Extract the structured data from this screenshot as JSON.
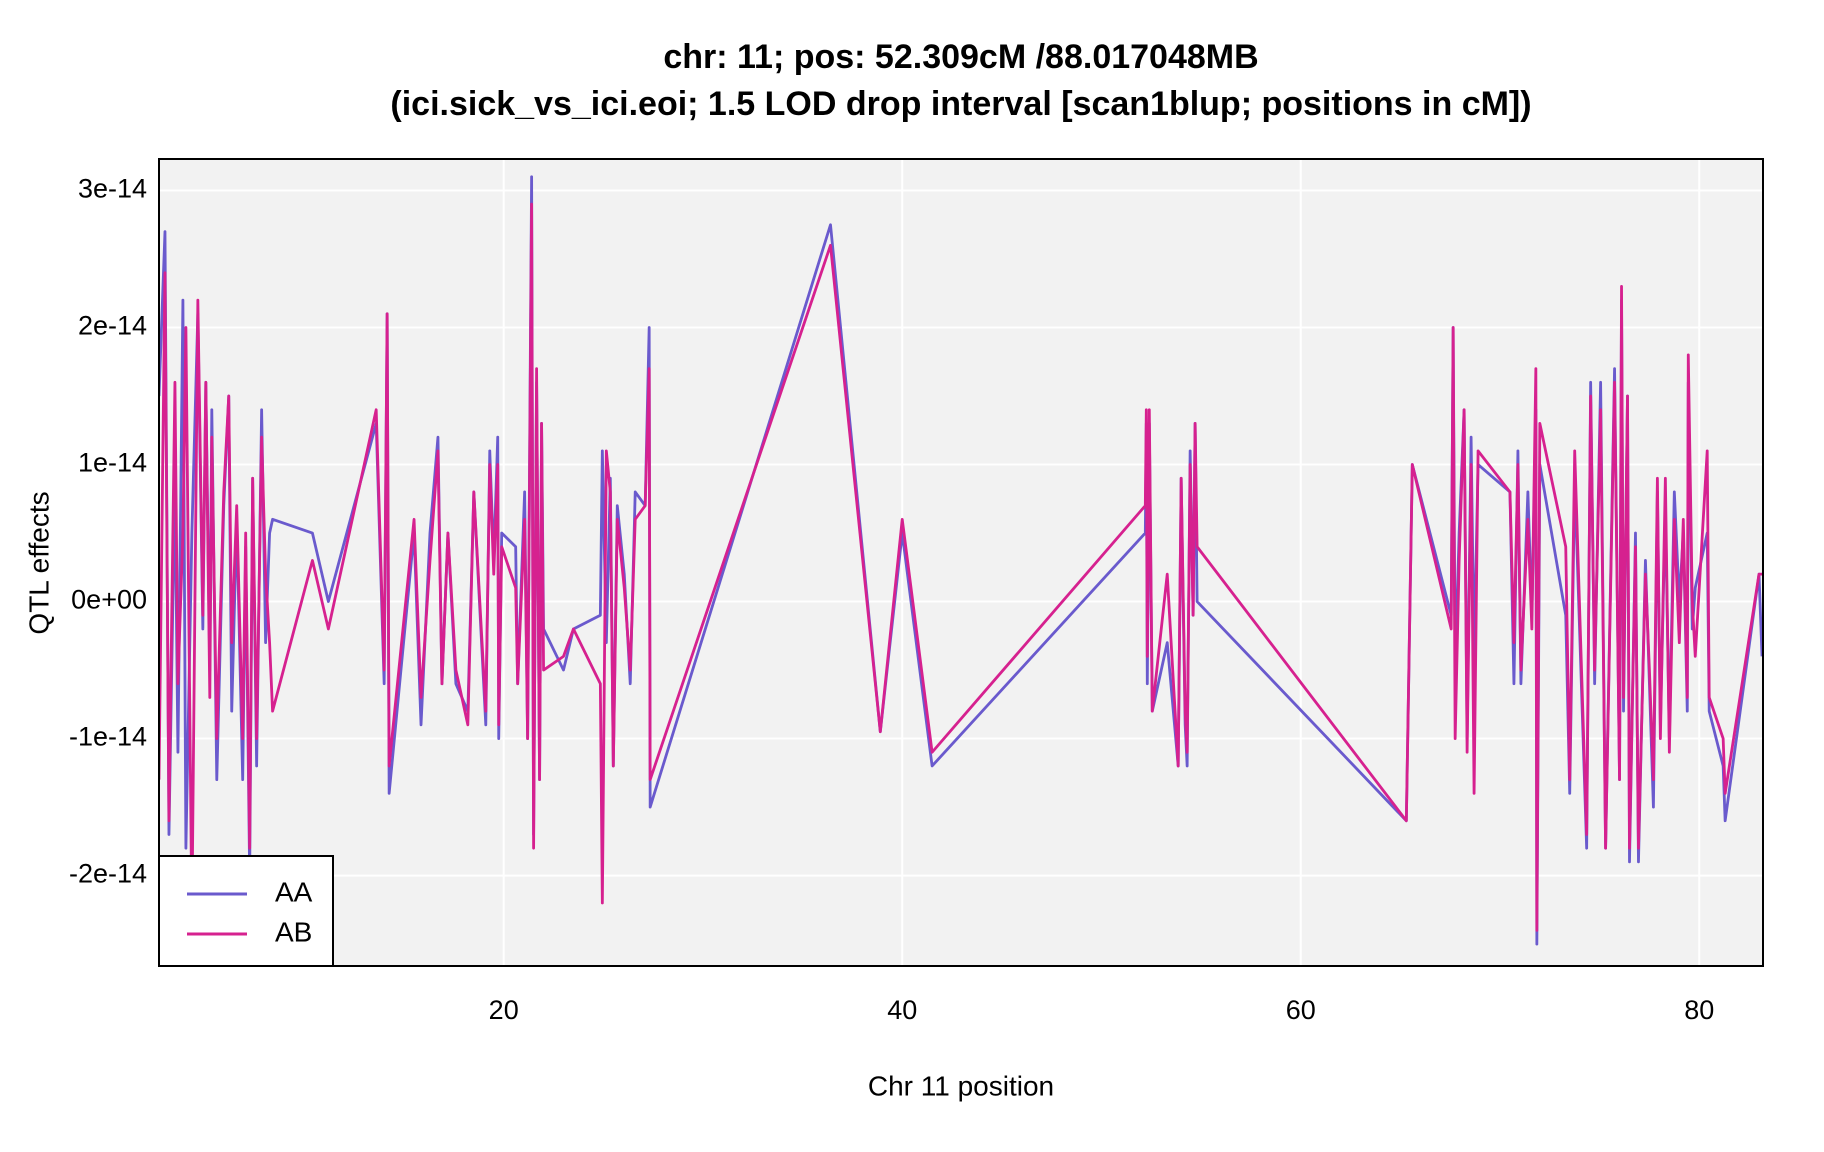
{
  "chart_data": {
    "type": "line",
    "title": "chr: 11; pos: 52.309cM /88.017048MB",
    "subtitle": "(ici.sick_vs_ici.eoi; 1.5 LOD drop interval [scan1blup; positions in cM])",
    "xlabel": "Chr 11 position",
    "ylabel": "QTL effects",
    "xlim": [
      2.7,
      83.2
    ],
    "xticks": [
      20,
      40,
      60,
      80
    ],
    "ylim": [
      -2.66e-14,
      3.23e-14
    ],
    "yticks": [
      {
        "value": -2e-14,
        "label": "-2e-14"
      },
      {
        "value": -1e-14,
        "label": "-1e-14"
      },
      {
        "value": 0,
        "label": "0e+00"
      },
      {
        "value": 1e-14,
        "label": "1e-14"
      },
      {
        "value": 2e-14,
        "label": "2e-14"
      },
      {
        "value": 3e-14,
        "label": "3e-14"
      }
    ],
    "grid": true,
    "legend": "bottom-left",
    "x": [
      2.7,
      3.0,
      3.2,
      3.5,
      3.65,
      3.9,
      4.05,
      4.35,
      4.65,
      4.9,
      5.05,
      5.25,
      5.35,
      5.6,
      5.95,
      6.2,
      6.35,
      6.6,
      6.9,
      7.05,
      7.25,
      7.4,
      7.6,
      7.85,
      8.05,
      8.25,
      8.4,
      10.4,
      11.2,
      13.6,
      14.0,
      14.15,
      14.25,
      15.5,
      15.85,
      16.3,
      16.7,
      16.9,
      17.2,
      17.6,
      18.2,
      18.5,
      19.1,
      19.3,
      19.5,
      19.7,
      19.75,
      19.9,
      20.6,
      20.7,
      21.05,
      21.2,
      21.4,
      21.5,
      21.65,
      21.8,
      21.9,
      22.0,
      23.0,
      23.5,
      24.85,
      24.95,
      25.15,
      25.35,
      25.5,
      25.7,
      26.05,
      26.35,
      26.6,
      27.1,
      27.3,
      27.35,
      36.4,
      38.9,
      40.0,
      41.5,
      52.2,
      52.25,
      52.3,
      52.4,
      52.55,
      53.3,
      53.85,
      54.0,
      54.2,
      54.3,
      54.45,
      54.6,
      54.7,
      54.8,
      65.3,
      65.6,
      67.55,
      67.65,
      67.75,
      67.95,
      68.2,
      68.35,
      68.55,
      68.7,
      68.9,
      70.5,
      70.7,
      70.9,
      71.05,
      71.4,
      71.6,
      71.8,
      71.85,
      72.0,
      73.3,
      73.5,
      73.75,
      74.35,
      74.55,
      74.75,
      75.05,
      75.3,
      75.75,
      76.0,
      76.1,
      76.2,
      76.4,
      76.5,
      76.8,
      76.95,
      77.3,
      77.5,
      77.7,
      77.9,
      78.05,
      78.3,
      78.5,
      78.75,
      79.0,
      79.2,
      79.4,
      79.45,
      79.65,
      79.8,
      80.4,
      80.5,
      81.2,
      81.3,
      83.0,
      83.15
    ],
    "series": [
      {
        "name": "AA",
        "color": "#6a5acd",
        "values": [
          1.5e-14,
          2.7e-14,
          -1.7e-14,
          9e-15,
          -1.1e-14,
          2.2e-14,
          -1.8e-14,
          5e-15,
          2.1e-14,
          -2e-15,
          1.6e-14,
          -5e-15,
          1.4e-14,
          -1.3e-14,
          7e-15,
          1.5e-14,
          -8e-15,
          6e-15,
          -1.3e-14,
          4e-15,
          -2e-14,
          9e-15,
          -1.2e-14,
          1.4e-14,
          -3e-15,
          5e-15,
          6e-15,
          5e-15,
          0,
          1.3e-14,
          -6e-15,
          2.1e-14,
          -1.4e-14,
          5e-15,
          -9e-15,
          5e-15,
          1.2e-14,
          -6e-15,
          5e-15,
          -6e-15,
          -8e-15,
          8e-15,
          -9e-15,
          1.1e-14,
          3e-15,
          1.2e-14,
          -1e-14,
          5e-15,
          4e-15,
          -6e-15,
          8e-15,
          -1e-14,
          3.1e-14,
          -1.7e-14,
          1.6e-14,
          -1.3e-14,
          1.3e-14,
          -2e-15,
          -5e-15,
          -2e-15,
          -1e-15,
          1.1e-14,
          -3e-15,
          9e-15,
          -1.2e-14,
          7e-15,
          2e-15,
          -6e-15,
          8e-15,
          7e-15,
          2e-14,
          -1.5e-14,
          2.75e-14,
          -9.5e-15,
          5e-15,
          -1.2e-14,
          5e-15,
          1.3e-14,
          -6e-15,
          1.3e-14,
          -8e-15,
          -3e-15,
          -1.2e-14,
          9e-15,
          -9e-15,
          -1.2e-14,
          1.1e-14,
          -1e-15,
          1.3e-14,
          0,
          -1.6e-14,
          1e-14,
          -1e-15,
          2e-14,
          -5e-15,
          5e-15,
          1.4e-14,
          -1e-14,
          1.2e-14,
          -4e-15,
          1e-14,
          8e-15,
          -6e-15,
          1.1e-14,
          -6e-15,
          8e-15,
          -1e-15,
          1.4e-14,
          -2.5e-14,
          1e-14,
          -1e-15,
          -1.4e-14,
          9e-15,
          -1.8e-14,
          1.6e-14,
          -6e-15,
          1.6e-14,
          -1.8e-14,
          1.7e-14,
          -1.3e-14,
          2.2e-14,
          -8e-15,
          1.5e-14,
          -1.9e-14,
          5e-15,
          -1.9e-14,
          3e-15,
          -6e-15,
          -1.5e-14,
          8e-15,
          -9e-15,
          7e-15,
          -1e-14,
          8e-15,
          0,
          5e-15,
          -8e-15,
          1.6e-14,
          -2e-15,
          1e-15,
          5e-15,
          -8e-15,
          -1.2e-14,
          -1.6e-14,
          2e-15,
          -4e-15
        ]
      },
      {
        "name": "AB",
        "color": "#d6218f",
        "values": [
          -1.3e-14,
          2.4e-14,
          -1.6e-14,
          1.6e-14,
          -6e-15,
          5e-15,
          2e-14,
          -2.3e-14,
          2.2e-14,
          -1e-15,
          1.6e-14,
          -7e-15,
          1.2e-14,
          -1e-14,
          8e-15,
          1.5e-14,
          -3e-15,
          7e-15,
          -1e-14,
          5e-15,
          -1.8e-14,
          9e-15,
          -1e-14,
          1.2e-14,
          2e-15,
          -3e-15,
          -8e-15,
          3e-15,
          -2e-15,
          1.4e-14,
          -5e-15,
          2.1e-14,
          -1.2e-14,
          6e-15,
          -7e-15,
          3e-15,
          1.1e-14,
          -6e-15,
          5e-15,
          -5e-15,
          -9e-15,
          8e-15,
          -8e-15,
          1e-14,
          2e-15,
          1e-14,
          -9e-15,
          4e-15,
          1e-15,
          -6e-15,
          6e-15,
          -1e-14,
          2.9e-14,
          -1.8e-14,
          1.7e-14,
          -1.3e-14,
          1.3e-14,
          -5e-15,
          -4e-15,
          -2e-15,
          -6e-15,
          -2.2e-14,
          1.1e-14,
          8e-15,
          -1.2e-14,
          6e-15,
          1e-15,
          -5e-15,
          6e-15,
          7e-15,
          1.7e-14,
          -1.3e-14,
          2.6e-14,
          -9.5e-15,
          6e-15,
          -1.1e-14,
          7e-15,
          1.4e-14,
          -4e-15,
          1.4e-14,
          -8e-15,
          2e-15,
          -1.2e-14,
          9e-15,
          -8e-15,
          -1.1e-14,
          1e-14,
          -1e-15,
          1.3e-14,
          4e-15,
          -1.6e-14,
          1e-14,
          -2e-15,
          2e-14,
          -1e-14,
          3e-15,
          1.4e-14,
          -1.1e-14,
          1e-14,
          -1.4e-14,
          1.1e-14,
          8e-15,
          -3e-15,
          1e-14,
          -5e-15,
          6e-15,
          -2e-15,
          1.7e-14,
          -2.4e-14,
          1.3e-14,
          4e-15,
          -1.3e-14,
          1.1e-14,
          -1.7e-14,
          1.5e-14,
          -5e-15,
          1.4e-14,
          -1.8e-14,
          1.6e-14,
          -1.3e-14,
          2.3e-14,
          -7e-15,
          1.5e-14,
          -1.8e-14,
          4e-15,
          -1.8e-14,
          2e-15,
          -5e-15,
          -1.3e-14,
          9e-15,
          -1e-14,
          9e-15,
          -1.1e-14,
          6e-15,
          -3e-15,
          6e-15,
          -7e-15,
          1.8e-14,
          0,
          -4e-15,
          1.1e-14,
          -7e-15,
          -1e-14,
          -1.4e-14,
          2e-15,
          2e-15
        ]
      }
    ]
  }
}
